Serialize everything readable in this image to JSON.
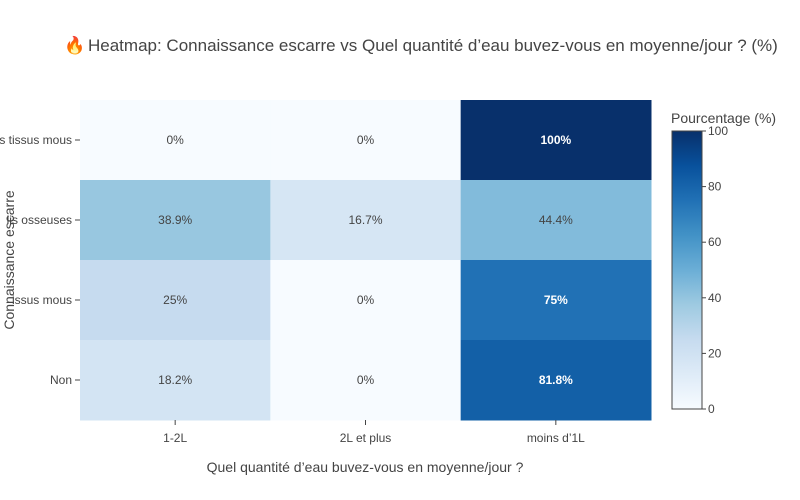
{
  "chart_data": {
    "type": "heatmap",
    "title_icon": "🔥",
    "title": "Heatmap: Connaissance escarre vs Quel quantité d’eau buvez-vous en moyenne/jour ? (%)",
    "xlabel": "Quel quantité d’eau buvez-vous en moyenne/jour ?",
    "ylabel": "Connaissance escarre",
    "x_categories": [
      "1-2L",
      "2L et plus",
      "moins d’1L"
    ],
    "y_categories": [
      "s tissus mous",
      "lis osseuses",
      "issus mous",
      "Non"
    ],
    "values": [
      [
        0,
        0,
        100
      ],
      [
        38.9,
        16.7,
        44.4
      ],
      [
        25,
        0,
        75
      ],
      [
        18.2,
        0,
        81.8
      ]
    ],
    "cell_labels": [
      [
        "0%",
        "0%",
        "100%"
      ],
      [
        "38.9%",
        "16.7%",
        "44.4%"
      ],
      [
        "25%",
        "0%",
        "75%"
      ],
      [
        "18.2%",
        "0%",
        "81.8%"
      ]
    ],
    "colorbar": {
      "title": "Pourcentage (%)",
      "range": [
        0,
        100
      ],
      "ticks": [
        0,
        20,
        40,
        60,
        80,
        100
      ],
      "tick_labels": [
        "0",
        "20",
        "40",
        "60",
        "80",
        "100"
      ]
    },
    "colorscale": [
      "#f7fbff",
      "#deebf7",
      "#c6dbef",
      "#9ecae1",
      "#6baed6",
      "#4292c6",
      "#2171b5",
      "#08519c",
      "#08306b"
    ],
    "text_colors": {
      "dark": "#444444",
      "light": "#ffffff"
    }
  }
}
